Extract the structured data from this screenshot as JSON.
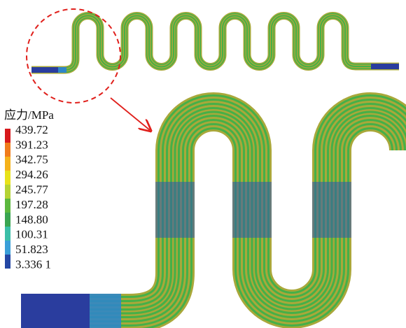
{
  "legend": {
    "title": "应力/MPa",
    "labels": [
      "439.72",
      "391.23",
      "342.75",
      "294.26",
      "245.77",
      "197.28",
      "148.80",
      "100.31",
      "51.823",
      "3.336 1"
    ]
  }
}
